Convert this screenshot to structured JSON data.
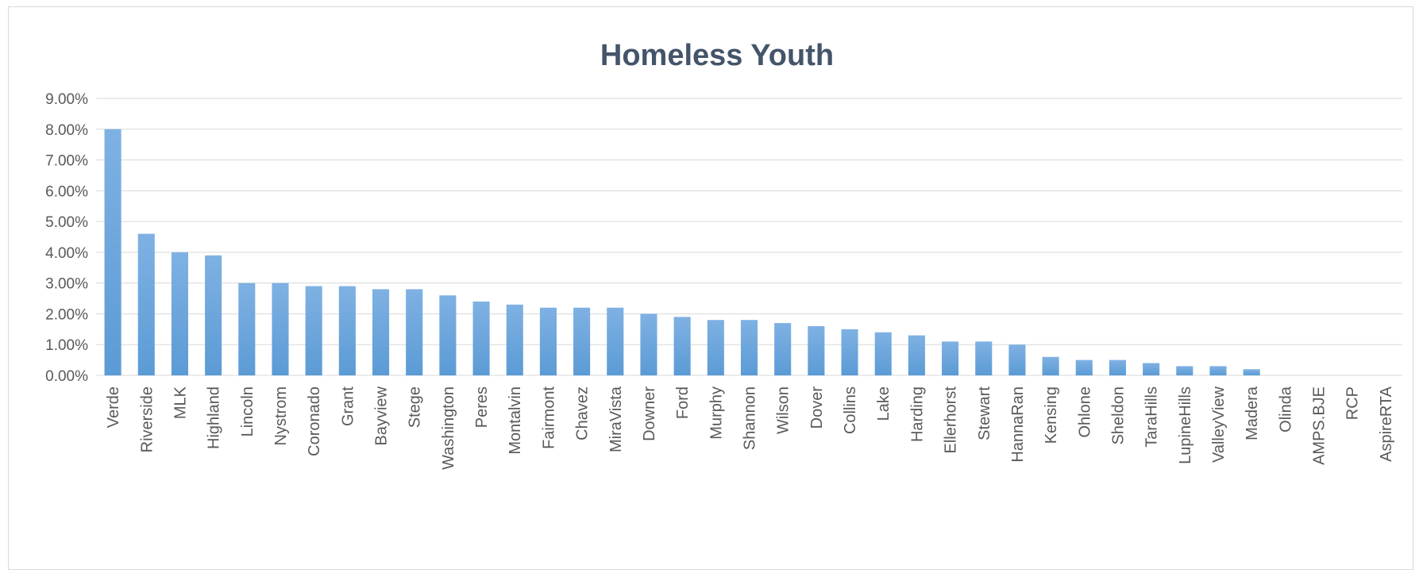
{
  "chart_data": {
    "type": "bar",
    "title": "Homeless Youth",
    "xlabel": "",
    "ylabel": "",
    "ylim": [
      0,
      0.09
    ],
    "yticks": [
      "0.00%",
      "1.00%",
      "2.00%",
      "3.00%",
      "4.00%",
      "5.00%",
      "6.00%",
      "7.00%",
      "8.00%",
      "9.00%"
    ],
    "grid": true,
    "legend": "none",
    "bar_color": "#5b9bd5",
    "categories": [
      "Verde",
      "Riverside",
      "MLK",
      "Highland",
      "Lincoln",
      "Nystrom",
      "Coronado",
      "Grant",
      "Bayview",
      "Stege",
      "Washington",
      "Peres",
      "Montalvin",
      "Fairmont",
      "Chavez",
      "MiraVista",
      "Downer",
      "Ford",
      "Murphy",
      "Shannon",
      "Wilson",
      "Dover",
      "Collins",
      "Lake",
      "Harding",
      "Ellerhorst",
      "Stewart",
      "HannaRan",
      "Kensing",
      "Ohlone",
      "Sheldon",
      "TaraHills",
      "LupineHills",
      "ValleyView",
      "Madera",
      "Olinda",
      "AMPS.BJE",
      "RCP",
      "AspireRTA"
    ],
    "values": [
      0.08,
      0.046,
      0.04,
      0.039,
      0.03,
      0.03,
      0.029,
      0.029,
      0.028,
      0.028,
      0.026,
      0.024,
      0.023,
      0.022,
      0.022,
      0.022,
      0.02,
      0.019,
      0.018,
      0.018,
      0.017,
      0.016,
      0.015,
      0.014,
      0.013,
      0.011,
      0.011,
      0.01,
      0.006,
      0.005,
      0.005,
      0.004,
      0.003,
      0.003,
      0.002,
      0.0,
      0.0,
      0.0,
      0.0
    ]
  }
}
